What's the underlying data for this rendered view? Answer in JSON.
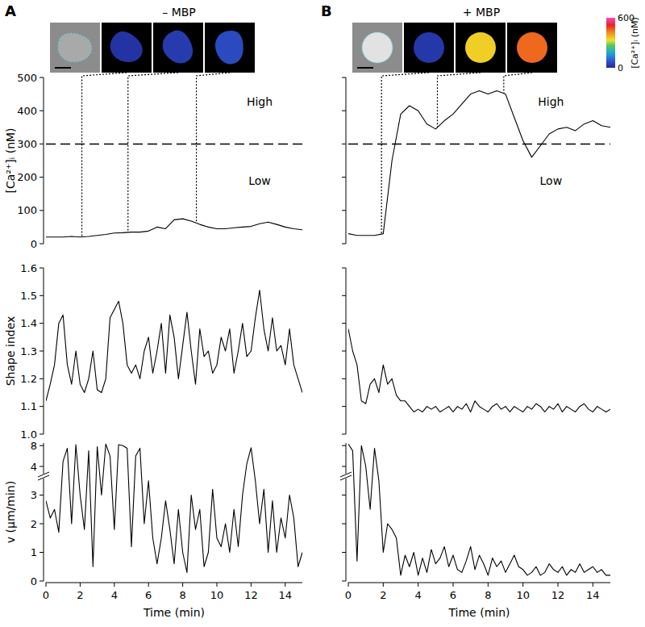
{
  "panels": [
    {
      "label": "A",
      "title": "– MBP"
    },
    {
      "label": "B",
      "title": "+ MBP"
    }
  ],
  "colorbar": {
    "range": [
      0,
      600
    ],
    "ticks": [
      0,
      600
    ],
    "label": "[Ca²⁺]ᵢ (nM)"
  },
  "chart_data": [
    {
      "type": "line",
      "ylabel": "[Ca²⁺]ᵢ (nM)",
      "color": "#000000",
      "tick_labels": "y",
      "x": [
        0,
        0.5,
        1,
        1.5,
        2,
        2.5,
        3,
        3.5,
        4,
        4.5,
        5,
        5.5,
        6,
        6.5,
        7,
        7.5,
        8,
        8.5,
        9,
        9.5,
        10,
        10.5,
        11,
        11.5,
        12,
        12.5,
        13,
        13.5,
        14,
        14.5,
        15
      ],
      "values": [
        20,
        20,
        20,
        22,
        20,
        22,
        25,
        28,
        32,
        33,
        35,
        35,
        38,
        50,
        45,
        72,
        75,
        68,
        58,
        50,
        45,
        45,
        48,
        50,
        52,
        60,
        65,
        58,
        50,
        45,
        42
      ],
      "xlim": [
        0,
        15
      ],
      "ylim": [
        0,
        500
      ],
      "yticks": [
        0,
        100,
        200,
        300,
        400,
        500
      ],
      "threshold": 300,
      "annotations": [
        {
          "text": "High",
          "x": 12.5,
          "y": 425
        },
        {
          "text": "Low",
          "x": 12.5,
          "y": 187
        }
      ],
      "snapshot_times": [
        2.1,
        4.8,
        8.8
      ]
    },
    {
      "type": "line",
      "ylabel": "Shape index",
      "color": "#000000",
      "tick_labels": "y",
      "x": [
        0,
        0.25,
        0.5,
        0.75,
        1,
        1.25,
        1.5,
        1.75,
        2,
        2.25,
        2.5,
        2.75,
        3,
        3.25,
        3.5,
        3.75,
        4,
        4.25,
        4.5,
        4.75,
        5,
        5.25,
        5.5,
        5.75,
        6,
        6.25,
        6.5,
        6.75,
        7,
        7.25,
        7.5,
        7.75,
        8,
        8.25,
        8.5,
        8.75,
        9,
        9.25,
        9.5,
        9.75,
        10,
        10.25,
        10.5,
        10.75,
        11,
        11.25,
        11.5,
        11.75,
        12,
        12.25,
        12.5,
        12.75,
        13,
        13.25,
        13.5,
        13.75,
        14,
        14.25,
        14.5,
        14.75,
        15
      ],
      "values": [
        1.12,
        1.18,
        1.25,
        1.4,
        1.43,
        1.25,
        1.18,
        1.3,
        1.18,
        1.15,
        1.2,
        1.3,
        1.16,
        1.15,
        1.2,
        1.42,
        1.45,
        1.48,
        1.4,
        1.25,
        1.22,
        1.25,
        1.2,
        1.3,
        1.35,
        1.22,
        1.3,
        1.4,
        1.22,
        1.43,
        1.35,
        1.2,
        1.32,
        1.44,
        1.3,
        1.18,
        1.38,
        1.28,
        1.3,
        1.22,
        1.25,
        1.35,
        1.3,
        1.38,
        1.22,
        1.3,
        1.4,
        1.28,
        1.3,
        1.42,
        1.52,
        1.38,
        1.3,
        1.42,
        1.3,
        1.32,
        1.25,
        1.38,
        1.25,
        1.2,
        1.15
      ],
      "xlim": [
        0,
        15
      ],
      "ylim": [
        1,
        1.6
      ],
      "yticks": [
        {
          "value": 1,
          "label": "1.0"
        },
        1.1,
        1.2,
        1.3,
        1.4,
        1.5,
        1.6
      ]
    },
    {
      "type": "line",
      "ylabel": "v (μm/min)",
      "xlabel": "Time (min)",
      "color": "#000000",
      "tick_labels": true,
      "x": [
        0,
        0.25,
        0.5,
        0.75,
        1,
        1.25,
        1.5,
        1.75,
        2,
        2.25,
        2.5,
        2.75,
        3,
        3.25,
        3.5,
        3.75,
        4,
        4.25,
        4.5,
        4.75,
        5,
        5.25,
        5.5,
        5.75,
        6,
        6.25,
        6.5,
        6.75,
        7,
        7.25,
        7.5,
        7.75,
        8,
        8.25,
        8.5,
        8.75,
        9,
        9.25,
        9.5,
        9.75,
        10,
        10.25,
        10.5,
        10.75,
        11,
        11.25,
        11.5,
        11.75,
        12,
        12.25,
        12.5,
        12.75,
        13,
        13.25,
        13.5,
        13.75,
        14,
        14.25,
        14.5,
        14.75,
        15
      ],
      "values": [
        2.8,
        2.2,
        2.5,
        1.7,
        5,
        7.5,
        2,
        8.2,
        3,
        1.8,
        7,
        0.5,
        7.8,
        3,
        8.3,
        6,
        1.8,
        8.2,
        8,
        7.5,
        1.2,
        6,
        7.5,
        2,
        3.5,
        1.5,
        0.6,
        1.5,
        2.8,
        1.8,
        0.6,
        2.5,
        1,
        0.3,
        3,
        1.8,
        2.5,
        0.5,
        1,
        3.2,
        1.5,
        1.2,
        2,
        1,
        2.5,
        1.2,
        3,
        4.5,
        7.6,
        3.5,
        2,
        3.2,
        1,
        2.8,
        1,
        2.2,
        1.5,
        3,
        2.2,
        0.5,
        1
      ],
      "xlim": [
        0,
        15
      ],
      "ylim": [
        0,
        8.5
      ],
      "yticks": [
        0,
        1,
        2,
        3,
        4,
        8
      ],
      "xticks": [
        0,
        2,
        4,
        6,
        8,
        10,
        12,
        14
      ]
    },
    {
      "type": "line",
      "color": "#000000",
      "tick_labels": false,
      "x": [
        0,
        0.5,
        1,
        1.5,
        2,
        2.5,
        3,
        3.5,
        4,
        4.5,
        5,
        5.5,
        6,
        6.5,
        7,
        7.5,
        8,
        8.5,
        9,
        9.5,
        10,
        10.5,
        11,
        11.5,
        12,
        12.5,
        13,
        13.5,
        14,
        14.5,
        15
      ],
      "values": [
        30,
        25,
        25,
        25,
        30,
        250,
        390,
        415,
        400,
        360,
        345,
        370,
        390,
        420,
        450,
        460,
        450,
        460,
        450,
        380,
        310,
        260,
        295,
        330,
        345,
        350,
        340,
        360,
        370,
        355,
        350
      ],
      "xlim": [
        0,
        15
      ],
      "ylim": [
        0,
        500
      ],
      "yticks": [
        0,
        100,
        200,
        300,
        400,
        500
      ],
      "threshold": 300,
      "annotations": [
        {
          "text": "High",
          "x": 11.6,
          "y": 425
        },
        {
          "text": "Low",
          "x": 11.6,
          "y": 187
        }
      ],
      "snapshot_times": [
        1.9,
        5.1,
        8.9
      ]
    },
    {
      "type": "line",
      "color": "#000000",
      "tick_labels": false,
      "x": [
        0,
        0.25,
        0.5,
        0.75,
        1,
        1.25,
        1.5,
        1.75,
        2,
        2.25,
        2.5,
        2.75,
        3,
        3.25,
        3.5,
        3.75,
        4,
        4.25,
        4.5,
        4.75,
        5,
        5.25,
        5.5,
        5.75,
        6,
        6.25,
        6.5,
        6.75,
        7,
        7.25,
        7.5,
        7.75,
        8,
        8.25,
        8.5,
        8.75,
        9,
        9.25,
        9.5,
        9.75,
        10,
        10.25,
        10.5,
        10.75,
        11,
        11.25,
        11.5,
        11.75,
        12,
        12.25,
        12.5,
        12.75,
        13,
        13.25,
        13.5,
        13.75,
        14,
        14.25,
        14.5,
        14.75,
        15
      ],
      "values": [
        1.38,
        1.3,
        1.25,
        1.12,
        1.11,
        1.18,
        1.2,
        1.15,
        1.25,
        1.18,
        1.2,
        1.14,
        1.12,
        1.12,
        1.1,
        1.08,
        1.09,
        1.08,
        1.1,
        1.09,
        1.1,
        1.08,
        1.09,
        1.1,
        1.08,
        1.1,
        1.09,
        1.11,
        1.08,
        1.12,
        1.1,
        1.09,
        1.08,
        1.1,
        1.11,
        1.09,
        1.1,
        1.08,
        1.1,
        1.09,
        1.08,
        1.1,
        1.09,
        1.11,
        1.1,
        1.08,
        1.1,
        1.09,
        1.11,
        1.08,
        1.1,
        1.09,
        1.08,
        1.1,
        1.11,
        1.09,
        1.08,
        1.1,
        1.09,
        1.08,
        1.09
      ],
      "xlim": [
        0,
        15
      ],
      "ylim": [
        1,
        1.6
      ],
      "yticks": [
        1,
        1.1,
        1.2,
        1.3,
        1.4,
        1.5,
        1.6
      ]
    },
    {
      "type": "line",
      "xlabel": "Time (min)",
      "color": "#000000",
      "tick_labels": "x",
      "x": [
        0,
        0.25,
        0.5,
        0.75,
        1,
        1.25,
        1.5,
        1.75,
        2,
        2.25,
        2.5,
        2.75,
        3,
        3.25,
        3.5,
        3.75,
        4,
        4.25,
        4.5,
        4.75,
        5,
        5.25,
        5.5,
        5.75,
        6,
        6.25,
        6.5,
        6.75,
        7,
        7.25,
        7.5,
        7.75,
        8,
        8.25,
        8.5,
        8.75,
        9,
        9.25,
        9.5,
        9.75,
        10,
        10.25,
        10.5,
        10.75,
        11,
        11.25,
        11.5,
        11.75,
        12,
        12.25,
        12.5,
        12.75,
        13,
        13.25,
        13.5,
        13.75,
        14,
        14.25,
        14.5,
        14.75,
        15
      ],
      "values": [
        8.3,
        7,
        0.7,
        8,
        4,
        2.5,
        7.5,
        3.5,
        1,
        2,
        1.8,
        1.5,
        0.2,
        0.9,
        0.5,
        1,
        0.2,
        0.8,
        0.3,
        1.1,
        0.6,
        0.8,
        1.2,
        0.5,
        0.9,
        0.4,
        0.3,
        0.7,
        1.2,
        0.4,
        0.9,
        0.6,
        0.2,
        0.8,
        0.5,
        0.7,
        0.3,
        0.6,
        0.9,
        0.5,
        0.4,
        0.2,
        0.3,
        0.5,
        0.2,
        0.3,
        0.6,
        0.4,
        0.3,
        0.5,
        0.2,
        0.4,
        0.3,
        0.6,
        0.3,
        0.4,
        0.5,
        0.3,
        0.4,
        0.2,
        0.2
      ],
      "xlim": [
        0,
        15
      ],
      "ylim": [
        0,
        8.5
      ],
      "yticks": [
        0,
        1,
        2,
        3,
        4,
        8
      ],
      "xticks": [
        0,
        2,
        4,
        6,
        8,
        10,
        12,
        14
      ]
    }
  ]
}
